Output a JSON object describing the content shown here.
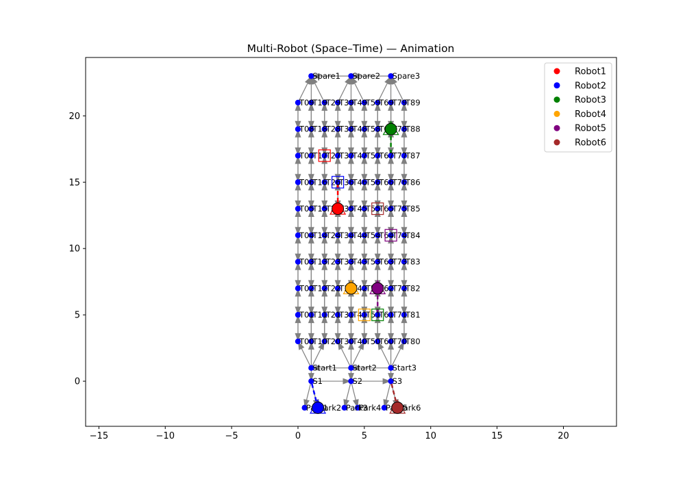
{
  "chart_data": {
    "type": "scatter",
    "title": "Multi-Robot (Space–Time) — Animation",
    "xlabel": "",
    "ylabel": "",
    "xlim": [
      -16.0,
      24.0
    ],
    "ylim": [
      -3.4,
      24.4
    ],
    "xticks": [
      -15,
      -10,
      -5,
      0,
      5,
      10,
      15,
      20
    ],
    "yticks": [
      0,
      5,
      10,
      15,
      20
    ],
    "grid": false,
    "legend_position": "top-right",
    "legend": [
      {
        "name": "Robot1",
        "color": "#ff0000"
      },
      {
        "name": "Robot2",
        "color": "#0000ff"
      },
      {
        "name": "Robot3",
        "color": "#008000"
      },
      {
        "name": "Robot4",
        "color": "#ffa500"
      },
      {
        "name": "Robot5",
        "color": "#800080"
      },
      {
        "name": "Robot6",
        "color": "#a52a2a"
      }
    ],
    "node_color": "#0000ff",
    "edge_color": "#808080",
    "grid_nodes": {
      "columns": [
        {
          "x": 0,
          "labels": [
            "T00",
            "T01",
            "T02",
            "T03",
            "T04",
            "T05",
            "T06",
            "T07",
            "T08",
            "T09"
          ]
        },
        {
          "x": 1,
          "labels": [
            "T10",
            "T11",
            "T12",
            "T13",
            "T14",
            "T15",
            "T16",
            "T17",
            "T18",
            "T19"
          ]
        },
        {
          "x": 2,
          "labels": [
            "T20",
            "T21",
            "T22",
            "T23",
            "T24",
            "T25",
            "T26",
            "T27",
            "T28",
            "T29"
          ]
        },
        {
          "x": 3,
          "labels": [
            "T30",
            "T31",
            "T32",
            "T33",
            "T34",
            "T35",
            "T36",
            "T37",
            "T38",
            "T39"
          ]
        },
        {
          "x": 4,
          "labels": [
            "T40",
            "T41",
            "T42",
            "T43",
            "T44",
            "T45",
            "T46",
            "T47",
            "T48",
            "T49"
          ]
        },
        {
          "x": 5,
          "labels": [
            "T50",
            "T51",
            "T52",
            "T53",
            "T54",
            "T55",
            "T56",
            "T57",
            "T58",
            "T59"
          ]
        },
        {
          "x": 6,
          "labels": [
            "T60",
            "T61",
            "T62",
            "T63",
            "T64",
            "T65",
            "T66",
            "T67",
            "T68",
            "T69"
          ]
        },
        {
          "x": 7,
          "labels": [
            "T70",
            "T71",
            "T72",
            "T73",
            "T74",
            "T75",
            "T76",
            "T77",
            "T78",
            "T79"
          ]
        },
        {
          "x": 8,
          "labels": [
            "T80",
            "T81",
            "T82",
            "T83",
            "T84",
            "T85",
            "T86",
            "T87",
            "T88",
            "T89"
          ]
        }
      ],
      "y_values": [
        3,
        5,
        7,
        9,
        11,
        13,
        15,
        17,
        19,
        21
      ]
    },
    "special_nodes": [
      {
        "label": "Spare1",
        "x": 1.0,
        "y": 23
      },
      {
        "label": "Spare2",
        "x": 4.0,
        "y": 23
      },
      {
        "label": "Spare3",
        "x": 7.0,
        "y": 23
      },
      {
        "label": "Start1",
        "x": 1.0,
        "y": 1
      },
      {
        "label": "Start2",
        "x": 4.0,
        "y": 1
      },
      {
        "label": "Start3",
        "x": 7.0,
        "y": 1
      },
      {
        "label": "S1",
        "x": 1.0,
        "y": 0
      },
      {
        "label": "S2",
        "x": 4.0,
        "y": 0
      },
      {
        "label": "S3",
        "x": 7.0,
        "y": 0
      },
      {
        "label": "Park1",
        "x": 0.5,
        "y": -2
      },
      {
        "label": "Park2",
        "x": 1.5,
        "y": -2
      },
      {
        "label": "Park3",
        "x": 3.5,
        "y": -2
      },
      {
        "label": "Park4",
        "x": 4.5,
        "y": -2
      },
      {
        "label": "Park5",
        "x": 6.5,
        "y": -2
      },
      {
        "label": "Park6",
        "x": 7.5,
        "y": -2
      }
    ],
    "robots": [
      {
        "name": "Robot1",
        "color": "#ff0000",
        "current": [
          3,
          13
        ],
        "start": [
          3,
          13
        ],
        "goal": [
          2,
          17
        ],
        "trail_to": [
          3,
          15
        ]
      },
      {
        "name": "Robot2",
        "color": "#0000ff",
        "current": [
          1.5,
          -2
        ],
        "start": [
          1.5,
          -2
        ],
        "goal": [
          3,
          15
        ],
        "trail_to": [
          1,
          0
        ]
      },
      {
        "name": "Robot3",
        "color": "#008000",
        "current": [
          7,
          19
        ],
        "start": [
          7,
          19
        ],
        "goal": [
          6,
          5
        ],
        "trail_to": [
          7,
          17
        ]
      },
      {
        "name": "Robot4",
        "color": "#ffa500",
        "current": [
          4,
          7
        ],
        "start": [
          4,
          7
        ],
        "goal": [
          5,
          5
        ],
        "trail_to": [
          4,
          7
        ]
      },
      {
        "name": "Robot5",
        "color": "#800080",
        "current": [
          6,
          7
        ],
        "start": [
          6,
          7
        ],
        "goal": [
          7,
          11
        ],
        "trail_to": [
          6,
          5
        ]
      },
      {
        "name": "Robot6",
        "color": "#a52a2a",
        "current": [
          7.5,
          -2
        ],
        "start": [
          7.5,
          -2
        ],
        "goal": [
          6,
          13
        ],
        "trail_to": [
          7,
          0
        ]
      }
    ]
  }
}
